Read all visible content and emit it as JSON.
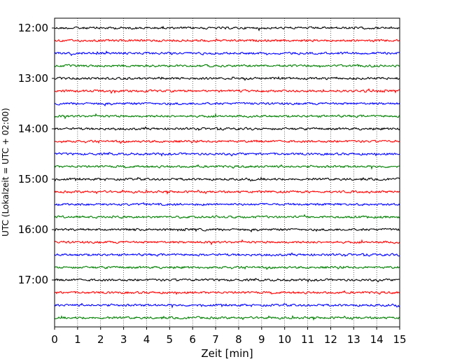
{
  "chart_data": {
    "type": "line",
    "title": "",
    "xlabel": "Zeit  [min]",
    "ylabel": "UTC (Lokalzeit = UTC + 02:00)",
    "xlim": [
      0,
      15
    ],
    "x_ticks": [
      "0",
      "1",
      "2",
      "3",
      "4",
      "5",
      "6",
      "7",
      "8",
      "9",
      "10",
      "11",
      "12",
      "13",
      "14",
      "15"
    ],
    "y_ticks": [
      "12:00",
      "13:00",
      "14:00",
      "15:00",
      "16:00",
      "17:00"
    ],
    "trace_start": "12:00",
    "trace_interval_min": 15,
    "trace_count": 24,
    "trace_colors": [
      "#000000",
      "#ff0000",
      "#0000ff",
      "#008000"
    ],
    "grid": {
      "x": true,
      "style": "dotted"
    },
    "legend": "none"
  }
}
